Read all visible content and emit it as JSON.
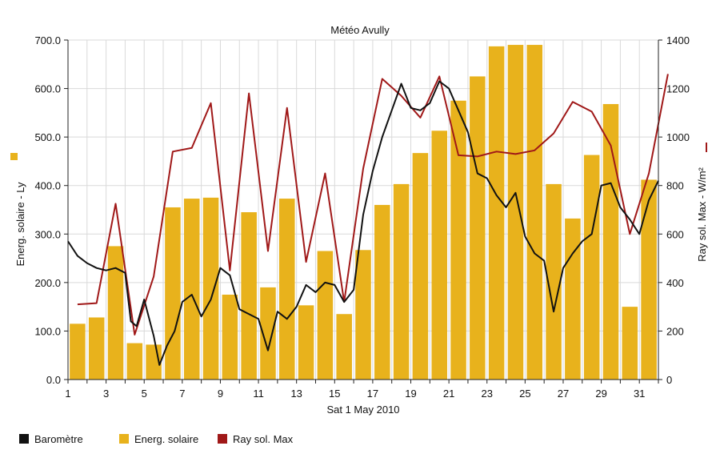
{
  "chart_data": {
    "type": "bar",
    "title": "Météo Avully",
    "xlabel": "Sat 1 May 2010",
    "x_ticks": [
      "1",
      "3",
      "5",
      "7",
      "9",
      "11",
      "13",
      "15",
      "17",
      "19",
      "21",
      "23",
      "25",
      "27",
      "29",
      "31"
    ],
    "y_left": {
      "label": "Energ. solaire - Ly",
      "ylim": [
        0,
        700
      ],
      "ticks": [
        "0.0",
        "100.0",
        "200.0",
        "300.0",
        "400.0",
        "500.0",
        "600.0",
        "700.0"
      ]
    },
    "y_right": {
      "label": "Ray sol. Max - W/m²",
      "ylim": [
        0,
        1400
      ],
      "ticks": [
        "0",
        "200",
        "400",
        "600",
        "800",
        "1000",
        "1200",
        "1400"
      ]
    },
    "grid": true,
    "colors": {
      "energy": "#e8b21c",
      "ray": "#a01818",
      "barometre": "#111111",
      "grid": "#d9d9d9"
    },
    "series": [
      {
        "name": "Energ. solaire",
        "type": "bar",
        "axis": "left",
        "x": [
          1,
          2,
          3,
          4,
          5,
          6,
          7,
          8,
          9,
          10,
          11,
          12,
          13,
          14,
          15,
          16,
          17,
          18,
          19,
          20,
          21,
          22,
          23,
          24,
          25,
          26,
          27,
          28,
          29,
          30,
          31
        ],
        "values": [
          115,
          128,
          275,
          75,
          72,
          355,
          373,
          375,
          175,
          345,
          190,
          373,
          153,
          265,
          135,
          267,
          360,
          403,
          467,
          513,
          575,
          625,
          687,
          690,
          690,
          403,
          332,
          463,
          568,
          150,
          412
        ]
      },
      {
        "name": "Ray sol. Max",
        "type": "line",
        "axis": "right",
        "x": [
          1,
          2,
          3,
          4,
          5,
          6,
          7,
          8,
          9,
          10,
          11,
          12,
          13,
          14,
          15,
          16,
          17,
          18,
          19,
          20,
          21,
          22,
          23,
          24,
          25,
          26,
          27,
          28,
          29,
          30,
          31,
          32
        ],
        "values": [
          310,
          315,
          725,
          185,
          425,
          940,
          955,
          1140,
          450,
          1180,
          530,
          1120,
          485,
          850,
          320,
          870,
          1240,
          1170,
          1080,
          1250,
          925,
          920,
          940,
          930,
          945,
          1015,
          1145,
          1105,
          965,
          600,
          850,
          1260
        ]
      },
      {
        "name": "Baromètre",
        "type": "line",
        "axis": "left",
        "x": [
          1,
          1.5,
          2,
          2.5,
          3,
          3.5,
          4,
          4.3,
          4.6,
          5,
          5.5,
          5.8,
          6.2,
          6.6,
          7,
          7.5,
          8,
          8.5,
          9,
          9.5,
          10,
          10.5,
          11,
          11.5,
          12,
          12.5,
          13,
          13.5,
          14,
          14.5,
          15,
          15.5,
          16,
          16.5,
          17,
          17.5,
          18,
          18.5,
          19,
          19.5,
          20,
          20.5,
          21,
          21.5,
          22,
          22.5,
          23,
          23.5,
          24,
          24.5,
          25,
          25.5,
          26,
          26.5,
          27,
          27.5,
          28,
          28.5,
          29,
          29.5,
          30,
          30.5,
          31,
          31.5,
          32
        ],
        "values": [
          285,
          255,
          240,
          230,
          225,
          230,
          220,
          120,
          110,
          165,
          90,
          30,
          70,
          100,
          160,
          175,
          130,
          165,
          230,
          215,
          145,
          135,
          125,
          60,
          140,
          125,
          150,
          195,
          180,
          200,
          195,
          160,
          185,
          340,
          430,
          500,
          555,
          610,
          560,
          555,
          570,
          615,
          600,
          555,
          510,
          425,
          415,
          380,
          355,
          385,
          295,
          260,
          245,
          140,
          230,
          260,
          285,
          300,
          400,
          405,
          355,
          330,
          300,
          370,
          410
        ]
      }
    ]
  },
  "legend": [
    {
      "label": "Baromètre",
      "color": "#111111"
    },
    {
      "label": "Energ. solaire",
      "color": "#e8b21c"
    },
    {
      "label": "Ray sol. Max",
      "color": "#a01818"
    }
  ]
}
